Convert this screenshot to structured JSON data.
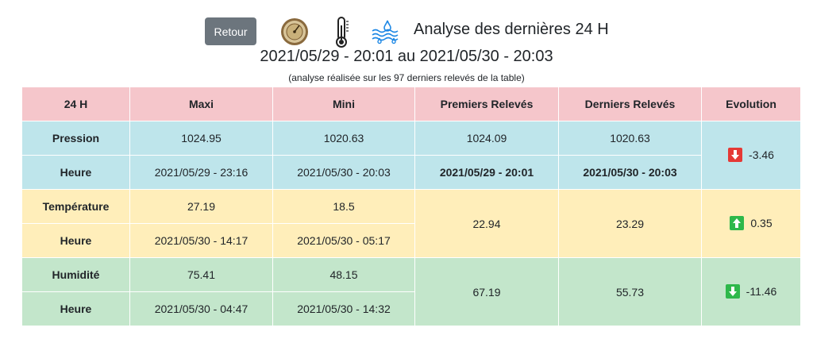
{
  "header": {
    "back_label": "Retour",
    "title": "Analyse des dernières 24 H",
    "date_range": "2021/05/29 - 20:01 au 2021/05/30 - 20:03",
    "note": "(analyse réalisée sur les 97 derniers relevés de la table)",
    "icons": [
      "barometer-icon",
      "thermometer-icon",
      "humidity-icon"
    ]
  },
  "table": {
    "columns": [
      "24 H",
      "Maxi",
      "Mini",
      "Premiers Relevés",
      "Derniers Relevés",
      "Evolution"
    ],
    "pression": {
      "label": "Pression",
      "maxi": "1024.95",
      "mini": "1020.63",
      "first": "1024.09",
      "last": "1020.63",
      "evolution": "-3.46",
      "direction": "down",
      "heure_label": "Heure",
      "maxi_time": "2021/05/29 - 23:16",
      "mini_time": "2021/05/30 - 20:03",
      "first_time": "2021/05/29 - 20:01",
      "last_time": "2021/05/30 - 20:03"
    },
    "temperature": {
      "label": "Température",
      "maxi": "27.19",
      "mini": "18.5",
      "first": "22.94",
      "last": "23.29",
      "evolution": "0.35",
      "direction": "up",
      "heure_label": "Heure",
      "maxi_time": "2021/05/30 - 14:17",
      "mini_time": "2021/05/30 - 05:17"
    },
    "humidite": {
      "label": "Humidité",
      "maxi": "75.41",
      "mini": "48.15",
      "first": "67.19",
      "last": "55.73",
      "evolution": "-11.46",
      "direction": "down",
      "heure_label": "Heure",
      "maxi_time": "2021/05/30 - 04:47",
      "mini_time": "2021/05/30 - 14:32"
    }
  },
  "colors": {
    "header_row": "#f5c6cb",
    "pression_rows": "#bee5eb",
    "temperature_rows": "#ffeeba",
    "humidite_rows": "#c3e6cb",
    "arrow_down_pressure": "#e53935",
    "arrow_up_temperature": "#2eb84b",
    "arrow_down_humidity": "#2eb84b",
    "back_button": "#6c757d"
  }
}
